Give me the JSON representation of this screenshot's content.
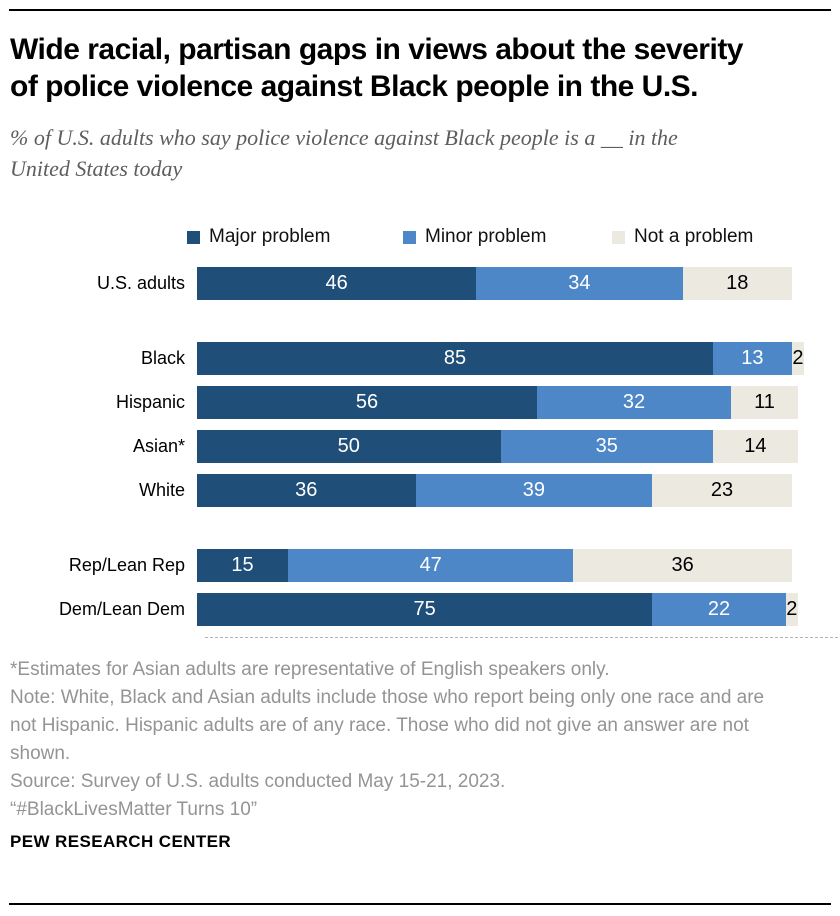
{
  "header": {
    "title_lines": [
      "Wide racial, partisan gaps in views about the severity",
      "of police violence against Black people in the U.S."
    ],
    "subtitle_lines": [
      "% of U.S. adults who say police violence against Black people is a __ in the",
      "United States today"
    ]
  },
  "chart_data": {
    "type": "bar",
    "stacked": true,
    "orientation": "horizontal",
    "value_unit": "percent",
    "xlim": [
      0,
      100
    ],
    "legend_position": "top",
    "series": [
      "Major problem",
      "Minor problem",
      "Not a problem"
    ],
    "series_colors": [
      "#1F4E79",
      "#4E87C8",
      "#ECE9E1"
    ],
    "groups": [
      {
        "name": "overall",
        "rows": [
          {
            "label": "U.S. adults",
            "values": [
              46,
              34,
              18
            ]
          }
        ]
      },
      {
        "name": "race-ethnicity",
        "rows": [
          {
            "label": "Black",
            "values": [
              85,
              13,
              2
            ]
          },
          {
            "label": "Hispanic",
            "values": [
              56,
              32,
              11
            ]
          },
          {
            "label": "Asian*",
            "values": [
              50,
              35,
              14
            ]
          },
          {
            "label": "White",
            "values": [
              36,
              39,
              23
            ]
          }
        ]
      },
      {
        "name": "party",
        "rows": [
          {
            "label": "Rep/Lean Rep",
            "values": [
              15,
              47,
              36
            ]
          },
          {
            "label": "Dem/Lean Dem",
            "values": [
              75,
              22,
              2
            ]
          }
        ]
      }
    ]
  },
  "footer": {
    "note_lines": [
      "*Estimates for Asian adults are representative of English speakers only.",
      "Note: White, Black and Asian adults include those who report being only one race and are",
      "not Hispanic. Hispanic adults are of any race. Those who did not give an answer are not",
      "shown.",
      "Source: Survey of U.S. adults conducted May 15-21, 2023.",
      "“#BlackLivesMatter Turns 10”"
    ],
    "brand": "PEW RESEARCH CENTER"
  }
}
